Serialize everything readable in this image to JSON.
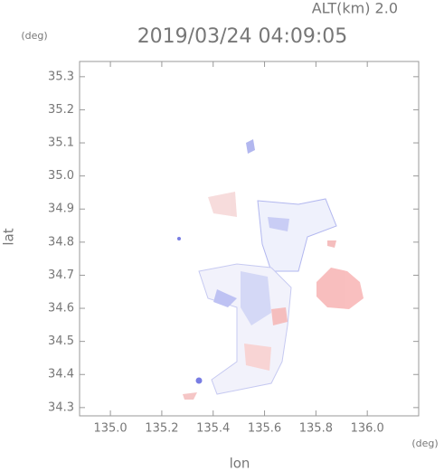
{
  "chart_data": {
    "type": "radar-map",
    "title": "2019/03/24 04:09:05",
    "subtitle": "ALT(km) 2.0",
    "xlabel": "lon",
    "ylabel": "lat",
    "x_unit": "(deg)",
    "y_unit": "(deg)",
    "xlim": [
      134.88,
      136.2
    ],
    "ylim": [
      34.275,
      35.346
    ],
    "xticks": [
      {
        "value": 135.0,
        "label": "135.0"
      },
      135.2,
      135.4,
      135.6,
      135.8,
      {
        "value": 136.0,
        "label": "136.0"
      }
    ],
    "yticks": [
      34.3,
      34.4,
      34.5,
      34.6,
      34.7,
      34.8,
      34.9,
      {
        "value": 35.0,
        "label": "35.0"
      },
      35.1,
      35.2,
      35.3
    ]
  }
}
